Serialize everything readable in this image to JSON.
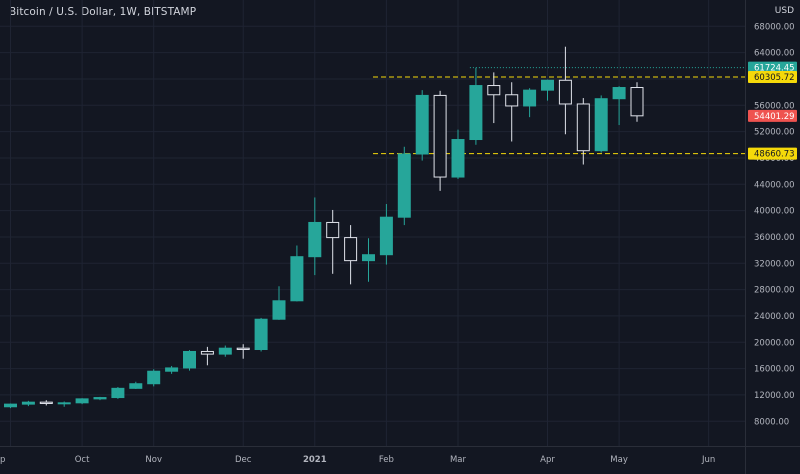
{
  "header": {
    "title": "Bitcoin / U.S. Dollar, 1W, BITSTAMP",
    "currency": "USD"
  },
  "colors": {
    "background": "#131722",
    "grid": "#1f2433",
    "up": "#26a69a",
    "down": "#131722",
    "down_outline": "#e0e3eb",
    "level_line": "#f5d90a",
    "last_price": "#ef5350",
    "high_marker": "#26a69a",
    "axis_text": "#b2b5be"
  },
  "chart_data": {
    "type": "candlestick",
    "title": "Bitcoin / U.S. Dollar, 1W, BITSTAMP",
    "ylabel": "USD",
    "ylim": [
      5000,
      70000
    ],
    "y_ticks": [
      68000,
      64000,
      60000,
      56000,
      52000,
      48000,
      44000,
      40000,
      36000,
      32000,
      28000,
      24000,
      20000,
      16000,
      12000,
      8000
    ],
    "y_tick_labels": [
      "68000.00",
      "64000.00",
      "60000.00",
      "56000.00",
      "52000.00",
      "48000.00",
      "44000.00",
      "40000.00",
      "36000.00",
      "32000.00",
      "28000.00",
      "24000.00",
      "20000.00",
      "16000.00",
      "12000.00",
      "8000.00"
    ],
    "x_labels": [
      {
        "label": "p",
        "index": 0
      },
      {
        "label": "Oct",
        "index": 4
      },
      {
        "label": "Nov",
        "index": 8
      },
      {
        "label": "Dec",
        "index": 13
      },
      {
        "label": "2021",
        "index": 17
      },
      {
        "label": "Feb",
        "index": 21
      },
      {
        "label": "Mar",
        "index": 25
      },
      {
        "label": "Apr",
        "index": 30
      },
      {
        "label": "May",
        "index": 34
      },
      {
        "label": "Jun",
        "index": 39
      }
    ],
    "candles": [
      {
        "o": 10200,
        "h": 10700,
        "l": 10000,
        "c": 10600
      },
      {
        "o": 10600,
        "h": 11100,
        "l": 10300,
        "c": 10900
      },
      {
        "o": 10900,
        "h": 11200,
        "l": 10400,
        "c": 10700
      },
      {
        "o": 10700,
        "h": 11000,
        "l": 10200,
        "c": 10800
      },
      {
        "o": 10800,
        "h": 11500,
        "l": 10600,
        "c": 11400
      },
      {
        "o": 11400,
        "h": 11700,
        "l": 11200,
        "c": 11600
      },
      {
        "o": 11600,
        "h": 13200,
        "l": 11400,
        "c": 13000
      },
      {
        "o": 13000,
        "h": 14000,
        "l": 12900,
        "c": 13700
      },
      {
        "o": 13700,
        "h": 15900,
        "l": 13300,
        "c": 15600
      },
      {
        "o": 15600,
        "h": 16400,
        "l": 15200,
        "c": 16100
      },
      {
        "o": 16100,
        "h": 18800,
        "l": 15700,
        "c": 18600
      },
      {
        "o": 18600,
        "h": 19300,
        "l": 16500,
        "c": 18200
      },
      {
        "o": 18200,
        "h": 19500,
        "l": 17800,
        "c": 19100
      },
      {
        "o": 19100,
        "h": 19700,
        "l": 17500,
        "c": 18900
      },
      {
        "o": 18900,
        "h": 23700,
        "l": 18600,
        "c": 23500
      },
      {
        "o": 23500,
        "h": 28500,
        "l": 23400,
        "c": 26300
      },
      {
        "o": 26300,
        "h": 34700,
        "l": 26200,
        "c": 33000
      },
      {
        "o": 33000,
        "h": 42000,
        "l": 30200,
        "c": 38200
      },
      {
        "o": 38200,
        "h": 40100,
        "l": 30400,
        "c": 35900
      },
      {
        "o": 35900,
        "h": 37800,
        "l": 28800,
        "c": 32400
      },
      {
        "o": 32400,
        "h": 35800,
        "l": 29200,
        "c": 33300
      },
      {
        "o": 33300,
        "h": 41000,
        "l": 31800,
        "c": 39000
      },
      {
        "o": 39000,
        "h": 49700,
        "l": 37800,
        "c": 48600
      },
      {
        "o": 48600,
        "h": 58300,
        "l": 47600,
        "c": 57500
      },
      {
        "o": 57500,
        "h": 58200,
        "l": 43000,
        "c": 45100
      },
      {
        "o": 45100,
        "h": 52300,
        "l": 44800,
        "c": 50800
      },
      {
        "o": 50800,
        "h": 61700,
        "l": 50000,
        "c": 59000
      },
      {
        "o": 59000,
        "h": 61000,
        "l": 53300,
        "c": 57600
      },
      {
        "o": 57600,
        "h": 59500,
        "l": 50500,
        "c": 55900
      },
      {
        "o": 55900,
        "h": 58600,
        "l": 54200,
        "c": 58300
      },
      {
        "o": 58300,
        "h": 59900,
        "l": 56700,
        "c": 59800
      },
      {
        "o": 59800,
        "h": 64900,
        "l": 51600,
        "c": 56200
      },
      {
        "o": 56200,
        "h": 57100,
        "l": 47000,
        "c": 49100
      },
      {
        "o": 49100,
        "h": 57500,
        "l": 48800,
        "c": 57000
      },
      {
        "o": 57000,
        "h": 58900,
        "l": 53000,
        "c": 58700
      },
      {
        "o": 58700,
        "h": 59500,
        "l": 53500,
        "c": 54400
      }
    ],
    "levels": [
      {
        "price": 60305.72,
        "label": "60305.72"
      },
      {
        "price": 48660.73,
        "label": "48660.73"
      }
    ],
    "high_marker": {
      "price": 61724.45,
      "label": "61724.45"
    },
    "last_price": {
      "price": 54401.29,
      "label": "54401.29"
    },
    "grid": true
  }
}
